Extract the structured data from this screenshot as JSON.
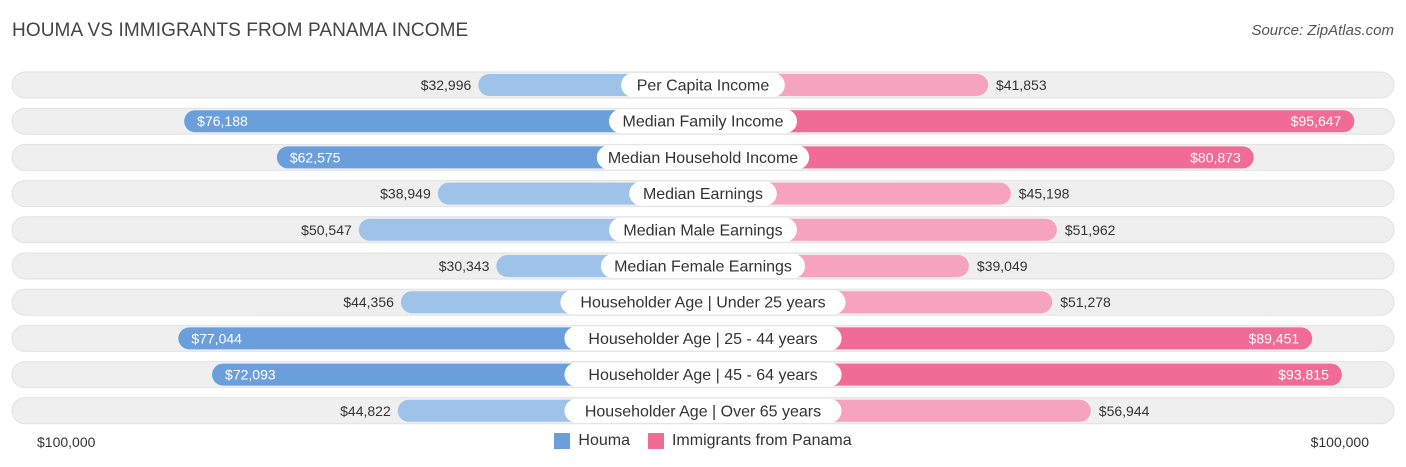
{
  "title": "HOUMA VS IMMIGRANTS FROM PANAMA INCOME",
  "source": "Source: ZipAtlas.com",
  "colors": {
    "houma_strong": "#6a9fdc",
    "houma_light": "#9fc2e9",
    "panama_strong": "#f06b96",
    "panama_light": "#f5a3bf",
    "track": "#efefef"
  },
  "axis": {
    "left_label": "$100,000",
    "right_label": "$100,000"
  },
  "legend": [
    {
      "name": "Houma",
      "color": "#6a9fdc"
    },
    {
      "name": "Immigrants from Panama",
      "color": "#f06b96"
    }
  ],
  "chart_data": {
    "type": "bar",
    "orientation": "horizontal-diverging",
    "title": "HOUMA VS IMMIGRANTS FROM PANAMA INCOME",
    "xlim": [
      -100000,
      100000
    ],
    "categories": [
      "Per Capita Income",
      "Median Family Income",
      "Median Household Income",
      "Median Earnings",
      "Median Male Earnings",
      "Median Female Earnings",
      "Householder Age | Under 25 years",
      "Householder Age | 25 - 44 years",
      "Householder Age | 45 - 64 years",
      "Householder Age | Over 65 years"
    ],
    "series": [
      {
        "name": "Houma",
        "side": "left",
        "values": [
          32996,
          76188,
          62575,
          38949,
          50547,
          30343,
          44356,
          77044,
          72093,
          44822
        ],
        "labels": [
          "$32,996",
          "$76,188",
          "$62,575",
          "$38,949",
          "$50,547",
          "$30,343",
          "$44,356",
          "$77,044",
          "$72,093",
          "$44,822"
        ]
      },
      {
        "name": "Immigrants from Panama",
        "side": "right",
        "values": [
          41853,
          95647,
          80873,
          45198,
          51962,
          39049,
          51278,
          89451,
          93815,
          56944
        ],
        "labels": [
          "$41,853",
          "$95,647",
          "$80,873",
          "$45,198",
          "$51,962",
          "$39,049",
          "$51,278",
          "$89,451",
          "$93,815",
          "$56,944"
        ]
      }
    ],
    "legend_position": "bottom-center"
  }
}
